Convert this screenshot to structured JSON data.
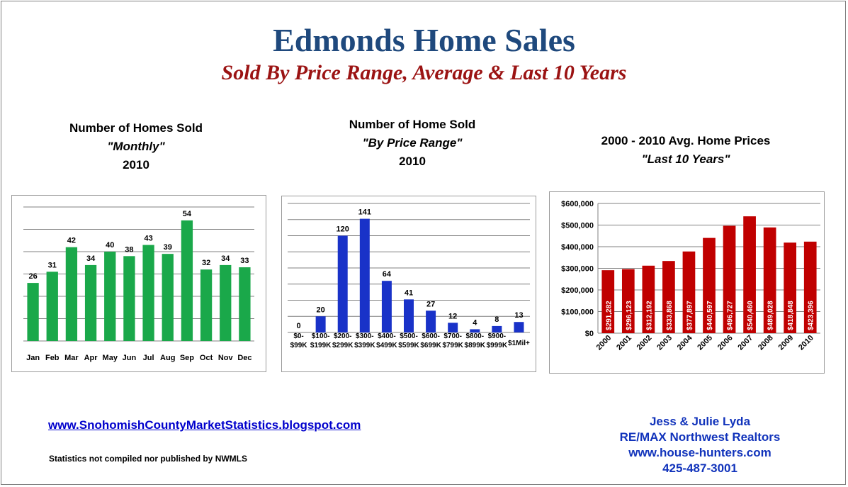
{
  "header": {
    "title": "Edmonds Home Sales",
    "subtitle": "Sold By Price Range, Average & Last 10 Years"
  },
  "charts": [
    {
      "heading1": "Number of Homes Sold",
      "heading2": "\"Monthly\"",
      "heading3": "2010"
    },
    {
      "heading1": "Number of Home Sold",
      "heading2": "\"By Price Range\"",
      "heading3": "2010"
    },
    {
      "heading1": "2000 - 2010 Avg. Home Prices",
      "heading2": "\"Last 10 Years\""
    }
  ],
  "chart_data": [
    {
      "type": "bar",
      "color": "#1aa84a",
      "categories": [
        "Jan",
        "Feb",
        "Mar",
        "Apr",
        "May",
        "Jun",
        "Jul",
        "Aug",
        "Sep",
        "Oct",
        "Nov",
        "Dec"
      ],
      "values": [
        26,
        31,
        42,
        34,
        40,
        38,
        43,
        39,
        54,
        32,
        34,
        33
      ],
      "ylim": [
        0,
        60
      ],
      "grid": true
    },
    {
      "type": "bar",
      "color": "#1932c8",
      "categories": [
        "$0-\n$99K",
        "$100-\n$199K",
        "$200-\n$299K",
        "$300-\n$399K",
        "$400-\n$499K",
        "$500-\n$599K",
        "$600-\n$699K",
        "$700-\n$799K",
        "$800-\n$899K",
        "$900-\n$999K",
        "$1Mil+"
      ],
      "values": [
        0,
        20,
        120,
        141,
        64,
        41,
        27,
        12,
        4,
        8,
        13
      ],
      "ylim": [
        0,
        160
      ],
      "grid": true
    },
    {
      "type": "bar",
      "color": "#c00000",
      "categories": [
        "2000",
        "2001",
        "2002",
        "2003",
        "2004",
        "2005",
        "2006",
        "2007",
        "2008",
        "2009",
        "2010"
      ],
      "values": [
        291282,
        296123,
        312192,
        333868,
        377897,
        440597,
        496727,
        540460,
        489028,
        418848,
        423396
      ],
      "data_labels": [
        "$291,282",
        "$296,123",
        "$312,192",
        "$333,868",
        "$377,897",
        "$440,597",
        "$496,727",
        "$540,460",
        "$489,028",
        "$418,848",
        "$423,396"
      ],
      "yticks": [
        "$0",
        "$100,000",
        "$200,000",
        "$300,000",
        "$400,000",
        "$500,000",
        "$600,000"
      ],
      "ylim": [
        0,
        600000
      ],
      "grid": true
    }
  ],
  "footer": {
    "link": "www.SnohomishCountyMarketStatistics.blogspot.com",
    "note": "Statistics not compiled nor published by NWMLS",
    "contact": [
      "Jess & Julie Lyda",
      "RE/MAX Northwest Realtors",
      "www.house-hunters.com",
      "425-487-3001"
    ]
  }
}
